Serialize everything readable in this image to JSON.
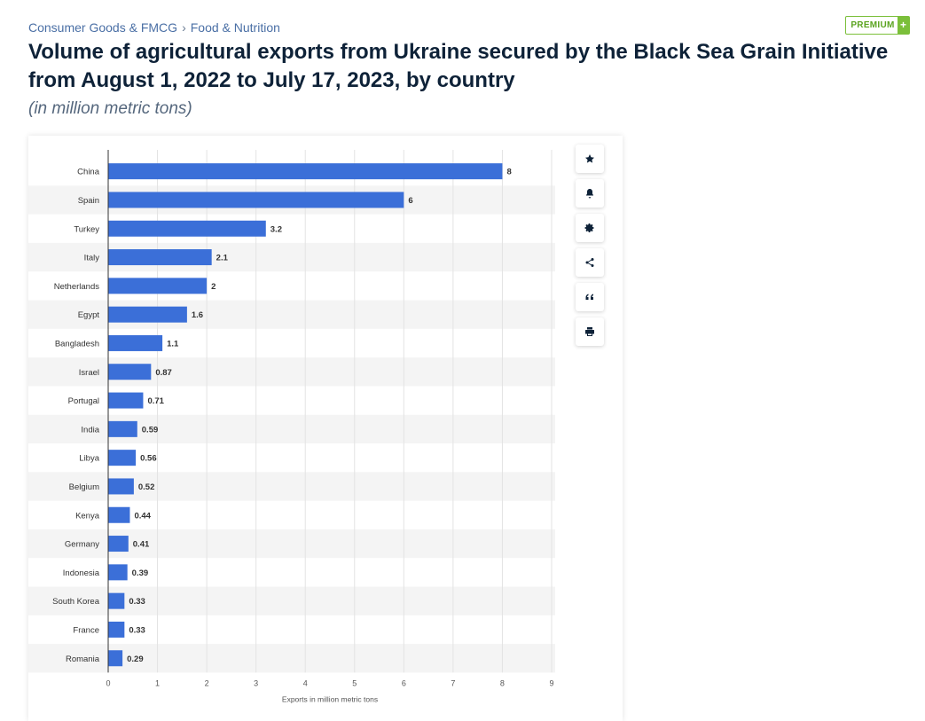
{
  "breadcrumb": {
    "category": "Consumer Goods & FMCG",
    "separator": "›",
    "subcategory": "Food & Nutrition"
  },
  "premium": {
    "label": "PREMIUM",
    "plus": "+"
  },
  "title": "Volume of agricultural exports from Ukraine secured by the Black Sea Grain Initiative from August 1, 2022 to July 17, 2023, by country",
  "subtitle": "(in million metric tons)",
  "toolbar": {
    "icons": [
      "star-icon",
      "bell-icon",
      "gear-icon",
      "share-icon",
      "quote-icon",
      "print-icon"
    ]
  },
  "colors": {
    "bar": "#3b6fd8",
    "title": "#0e2238",
    "breadcrumb": "#4a6fa5",
    "premium": "#7bbf3a",
    "stripe": "#f4f4f4"
  },
  "chart_data": {
    "type": "bar",
    "orientation": "horizontal",
    "categories": [
      "China",
      "Spain",
      "Turkey",
      "Italy",
      "Netherlands",
      "Egypt",
      "Bangladesh",
      "Israel",
      "Portugal",
      "India",
      "Libya",
      "Belgium",
      "Kenya",
      "Germany",
      "Indonesia",
      "South Korea",
      "France",
      "Romania"
    ],
    "values": [
      8,
      6,
      3.2,
      2.1,
      2,
      1.6,
      1.1,
      0.87,
      0.71,
      0.59,
      0.56,
      0.52,
      0.44,
      0.41,
      0.39,
      0.33,
      0.33,
      0.29
    ],
    "value_labels": [
      "8",
      "6",
      "3.2",
      "2.1",
      "2",
      "1.6",
      "1.1",
      "0.87",
      "0.71",
      "0.59",
      "0.56",
      "0.52",
      "0.44",
      "0.41",
      "0.39",
      "0.33",
      "0.33",
      "0.29"
    ],
    "xlabel": "Exports in million metric tons",
    "xlim": [
      0,
      9
    ],
    "xticks": [
      0,
      1,
      2,
      3,
      4,
      5,
      6,
      7,
      8,
      9
    ],
    "grid": "vertical",
    "legend": "none"
  }
}
